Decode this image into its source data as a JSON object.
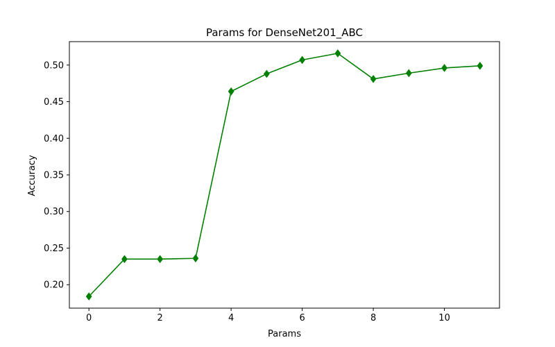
{
  "chart_data": {
    "type": "line",
    "title": "Params for DenseNet201_ABC",
    "xlabel": "Params",
    "ylabel": "Accuracy",
    "xlim": [
      -0.55,
      11.55
    ],
    "ylim": [
      0.168,
      0.532
    ],
    "xticks": [
      0,
      2,
      4,
      6,
      8,
      10
    ],
    "xtick_labels": [
      "0",
      "2",
      "4",
      "6",
      "8",
      "10"
    ],
    "yticks": [
      0.2,
      0.25,
      0.3,
      0.35,
      0.4,
      0.45,
      0.5
    ],
    "ytick_labels": [
      "0.20",
      "0.25",
      "0.30",
      "0.35",
      "0.40",
      "0.45",
      "0.50"
    ],
    "grid": false,
    "series": [
      {
        "name": "Accuracy",
        "color": "#008000",
        "marker": "diamond",
        "x": [
          0,
          1,
          2,
          3,
          4,
          5,
          6,
          7,
          8,
          9,
          10,
          11
        ],
        "values": [
          0.184,
          0.235,
          0.235,
          0.236,
          0.464,
          0.488,
          0.507,
          0.516,
          0.481,
          0.489,
          0.496,
          0.499
        ]
      }
    ]
  }
}
